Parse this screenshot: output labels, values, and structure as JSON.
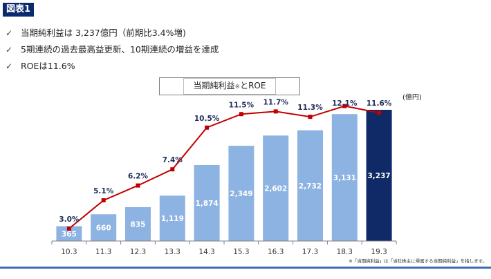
{
  "figure_label": "図表1",
  "bullets": [
    {
      "check": "✓",
      "text": "当期純利益は 3,237億円（前期比3.4%増)"
    },
    {
      "check": "✓",
      "text": "5期連続の過去最高益更新、10期連続の増益を達成"
    },
    {
      "check": "✓",
      "text": "ROEは11.6%"
    }
  ],
  "chart_title": {
    "main": "当期純利益",
    "mark": "※",
    "tail": "とROE"
  },
  "unit": "(億円)",
  "footnote": "※「当期純利益」は「当社株主に帰属する当期純利益」を指します。",
  "colors": {
    "bar": "#8db3e2",
    "bar_highlight": "#0f2a66",
    "line": "#c00000",
    "bar_label": "#ffffff",
    "axis": "#7f7f7f",
    "accent": "#3a6fb5"
  },
  "chart_data": {
    "type": "bar",
    "categories": [
      "10.3",
      "11.3",
      "12.3",
      "13.3",
      "14.3",
      "15.3",
      "16.3",
      "17.3",
      "18.3",
      "19.3"
    ],
    "series": [
      {
        "name": "当期純利益",
        "type": "bar",
        "values": [
          365,
          660,
          835,
          1119,
          1874,
          2349,
          2602,
          2732,
          3131,
          3237
        ],
        "labels": [
          "365",
          "660",
          "835",
          "1,119",
          "1,874",
          "2,349",
          "2,602",
          "2,732",
          "3,131",
          "3,237"
        ]
      },
      {
        "name": "ROE",
        "type": "line",
        "values": [
          3.0,
          5.1,
          6.2,
          7.4,
          10.5,
          11.5,
          11.7,
          11.3,
          12.1,
          11.6
        ],
        "labels": [
          "3.0%",
          "5.1%",
          "6.2%",
          "7.4%",
          "10.5%",
          "11.5%",
          "11.7%",
          "11.3%",
          "12.1%",
          "11.6%"
        ]
      }
    ],
    "highlight_index": 9,
    "grid": false,
    "legend": "none"
  }
}
